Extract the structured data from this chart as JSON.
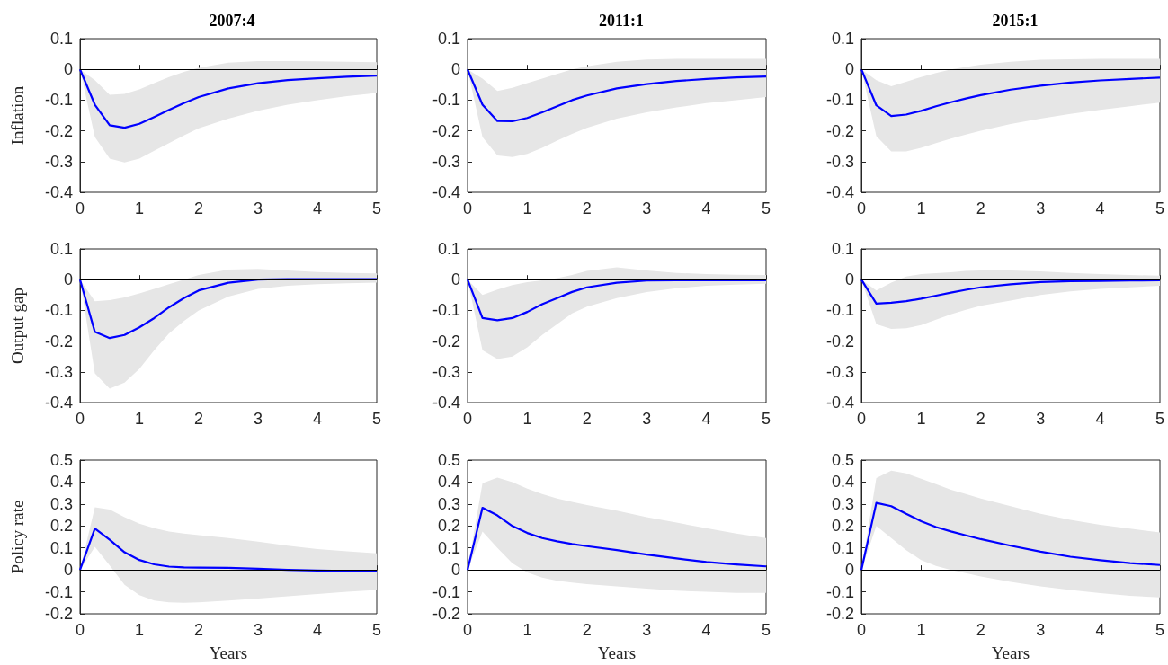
{
  "chart_data": [
    {
      "type": "line",
      "title": "2007:4",
      "ylabel": "Inflation",
      "x": [
        0,
        0.25,
        0.5,
        0.75,
        1,
        1.25,
        1.5,
        1.75,
        2,
        2.5,
        3,
        3.5,
        4,
        4.5,
        5
      ],
      "xlim": [
        0,
        5
      ],
      "xticks": [
        0,
        1,
        2,
        3,
        4,
        5
      ],
      "ylim": [
        -0.4,
        0.1
      ],
      "yticks": [
        -0.4,
        -0.3,
        -0.2,
        -0.1,
        0,
        0.1
      ],
      "ref_lines": [
        {
          "axis": "y",
          "value": 0,
          "color": "#000000"
        }
      ],
      "series": [
        {
          "color": "#0000ff",
          "values": [
            0,
            -0.115,
            -0.182,
            -0.19,
            -0.177,
            -0.155,
            -0.132,
            -0.11,
            -0.09,
            -0.062,
            -0.045,
            -0.035,
            -0.029,
            -0.024,
            -0.02
          ],
          "lower": [
            0,
            -0.22,
            -0.29,
            -0.303,
            -0.29,
            -0.265,
            -0.24,
            -0.215,
            -0.192,
            -0.16,
            -0.135,
            -0.115,
            -0.1,
            -0.087,
            -0.077
          ],
          "upper": [
            0,
            -0.035,
            -0.083,
            -0.08,
            -0.065,
            -0.045,
            -0.025,
            -0.008,
            0.005,
            0.022,
            0.027,
            0.027,
            0.026,
            0.025,
            0.023
          ]
        }
      ]
    },
    {
      "type": "line",
      "title": "2011:1",
      "x": [
        0,
        0.25,
        0.5,
        0.75,
        1,
        1.25,
        1.5,
        1.75,
        2,
        2.5,
        3,
        3.5,
        4,
        4.5,
        5
      ],
      "xlim": [
        0,
        5
      ],
      "xticks": [
        0,
        1,
        2,
        3,
        4,
        5
      ],
      "ylim": [
        -0.4,
        0.1
      ],
      "yticks": [
        -0.4,
        -0.3,
        -0.2,
        -0.1,
        0,
        0.1
      ],
      "ref_lines": [
        {
          "axis": "y",
          "value": 0,
          "color": "#000000"
        }
      ],
      "series": [
        {
          "color": "#0000ff",
          "values": [
            0,
            -0.115,
            -0.168,
            -0.169,
            -0.158,
            -0.14,
            -0.12,
            -0.1,
            -0.085,
            -0.062,
            -0.048,
            -0.038,
            -0.031,
            -0.026,
            -0.023
          ],
          "lower": [
            0,
            -0.22,
            -0.28,
            -0.285,
            -0.275,
            -0.255,
            -0.232,
            -0.21,
            -0.19,
            -0.16,
            -0.14,
            -0.124,
            -0.11,
            -0.1,
            -0.09
          ],
          "upper": [
            0,
            -0.03,
            -0.07,
            -0.06,
            -0.045,
            -0.03,
            -0.015,
            0,
            0.01,
            0.025,
            0.032,
            0.034,
            0.034,
            0.034,
            0.034
          ]
        }
      ]
    },
    {
      "type": "line",
      "title": "2015:1",
      "x": [
        0,
        0.25,
        0.5,
        0.75,
        1,
        1.25,
        1.5,
        1.75,
        2,
        2.5,
        3,
        3.5,
        4,
        4.5,
        5
      ],
      "xlim": [
        0,
        5
      ],
      "xticks": [
        0,
        1,
        2,
        3,
        4,
        5
      ],
      "ylim": [
        -0.4,
        0.1
      ],
      "yticks": [
        -0.4,
        -0.3,
        -0.2,
        -0.1,
        0,
        0.1
      ],
      "ref_lines": [
        {
          "axis": "y",
          "value": 0,
          "color": "#000000"
        }
      ],
      "series": [
        {
          "color": "#0000ff",
          "values": [
            0,
            -0.117,
            -0.152,
            -0.147,
            -0.135,
            -0.12,
            -0.107,
            -0.095,
            -0.084,
            -0.066,
            -0.053,
            -0.043,
            -0.036,
            -0.031,
            -0.027
          ],
          "lower": [
            0,
            -0.217,
            -0.267,
            -0.267,
            -0.255,
            -0.24,
            -0.225,
            -0.212,
            -0.2,
            -0.178,
            -0.16,
            -0.145,
            -0.132,
            -0.12,
            -0.108
          ],
          "upper": [
            0,
            -0.035,
            -0.055,
            -0.04,
            -0.025,
            -0.012,
            0,
            0.008,
            0.015,
            0.025,
            0.031,
            0.033,
            0.034,
            0.034,
            0.034
          ]
        }
      ]
    },
    {
      "type": "line",
      "ylabel": "Output gap",
      "x": [
        0,
        0.25,
        0.5,
        0.75,
        1,
        1.25,
        1.5,
        1.75,
        2,
        2.5,
        3,
        3.5,
        4,
        4.5,
        5
      ],
      "xlim": [
        0,
        5
      ],
      "xticks": [
        0,
        1,
        2,
        3,
        4,
        5
      ],
      "ylim": [
        -0.4,
        0.1
      ],
      "yticks": [
        -0.4,
        -0.3,
        -0.2,
        -0.1,
        0,
        0.1
      ],
      "ref_lines": [
        {
          "axis": "y",
          "value": 0,
          "color": "#000000"
        }
      ],
      "series": [
        {
          "color": "#0000ff",
          "values": [
            0,
            -0.17,
            -0.19,
            -0.18,
            -0.155,
            -0.125,
            -0.09,
            -0.06,
            -0.035,
            -0.01,
            0,
            0.002,
            0.002,
            0.002,
            0.002
          ],
          "lower": [
            0,
            -0.305,
            -0.355,
            -0.335,
            -0.29,
            -0.23,
            -0.175,
            -0.135,
            -0.1,
            -0.055,
            -0.03,
            -0.02,
            -0.015,
            -0.012,
            -0.01
          ],
          "upper": [
            0,
            -0.07,
            -0.067,
            -0.058,
            -0.045,
            -0.03,
            -0.015,
            0,
            0.015,
            0.033,
            0.035,
            0.03,
            0.025,
            0.022,
            0.02
          ]
        }
      ]
    },
    {
      "type": "line",
      "x": [
        0,
        0.25,
        0.5,
        0.75,
        1,
        1.25,
        1.5,
        1.75,
        2,
        2.5,
        3,
        3.5,
        4,
        4.5,
        5
      ],
      "xlim": [
        0,
        5
      ],
      "xticks": [
        0,
        1,
        2,
        3,
        4,
        5
      ],
      "ylim": [
        -0.4,
        0.1
      ],
      "yticks": [
        -0.4,
        -0.3,
        -0.2,
        -0.1,
        0,
        0.1
      ],
      "ref_lines": [
        {
          "axis": "y",
          "value": 0,
          "color": "#000000"
        }
      ],
      "series": [
        {
          "color": "#0000ff",
          "values": [
            0,
            -0.125,
            -0.132,
            -0.125,
            -0.105,
            -0.08,
            -0.06,
            -0.04,
            -0.025,
            -0.01,
            -0.003,
            -0.002,
            -0.002,
            -0.002,
            -0.002
          ],
          "lower": [
            0,
            -0.23,
            -0.258,
            -0.25,
            -0.22,
            -0.18,
            -0.145,
            -0.11,
            -0.088,
            -0.06,
            -0.04,
            -0.028,
            -0.02,
            -0.016,
            -0.013
          ],
          "upper": [
            0,
            -0.05,
            -0.032,
            -0.018,
            -0.008,
            -0.002,
            0.005,
            0.015,
            0.028,
            0.04,
            0.03,
            0.022,
            0.018,
            0.016,
            0.015
          ]
        }
      ]
    },
    {
      "type": "line",
      "x": [
        0,
        0.25,
        0.5,
        0.75,
        1,
        1.25,
        1.5,
        1.75,
        2,
        2.5,
        3,
        3.5,
        4,
        4.5,
        5
      ],
      "xlim": [
        0,
        5
      ],
      "xticks": [
        0,
        1,
        2,
        3,
        4,
        5
      ],
      "ylim": [
        -0.4,
        0.1
      ],
      "yticks": [
        -0.4,
        -0.3,
        -0.2,
        -0.1,
        0,
        0.1
      ],
      "ref_lines": [
        {
          "axis": "y",
          "value": 0,
          "color": "#000000"
        }
      ],
      "series": [
        {
          "color": "#0000ff",
          "values": [
            0,
            -0.078,
            -0.075,
            -0.07,
            -0.062,
            -0.052,
            -0.042,
            -0.033,
            -0.025,
            -0.015,
            -0.008,
            -0.005,
            -0.004,
            -0.003,
            -0.002
          ],
          "lower": [
            0,
            -0.145,
            -0.16,
            -0.158,
            -0.148,
            -0.13,
            -0.113,
            -0.098,
            -0.085,
            -0.068,
            -0.05,
            -0.038,
            -0.03,
            -0.025,
            -0.02
          ],
          "upper": [
            0,
            -0.035,
            -0.01,
            0.01,
            0.018,
            0.021,
            0.024,
            0.028,
            0.03,
            0.03,
            0.027,
            0.022,
            0.018,
            0.015,
            0.013
          ]
        }
      ]
    },
    {
      "type": "line",
      "ylabel": "Policy rate",
      "xlabel": "Years",
      "x": [
        0,
        0.25,
        0.5,
        0.75,
        1,
        1.25,
        1.5,
        1.75,
        2,
        2.5,
        3,
        3.5,
        4,
        4.5,
        5
      ],
      "xlim": [
        0,
        5
      ],
      "xticks": [
        0,
        1,
        2,
        3,
        4,
        5
      ],
      "ylim": [
        -0.2,
        0.5
      ],
      "yticks": [
        -0.2,
        -0.1,
        0,
        0.1,
        0.2,
        0.3,
        0.4,
        0.5
      ],
      "ref_lines": [
        {
          "axis": "y",
          "value": 0,
          "color": "#000000"
        }
      ],
      "series": [
        {
          "color": "#0000ff",
          "values": [
            0,
            0.188,
            0.137,
            0.08,
            0.045,
            0.025,
            0.015,
            0.011,
            0.01,
            0.009,
            0.005,
            0,
            -0.003,
            -0.005,
            -0.006
          ],
          "lower": [
            0,
            0.105,
            0.02,
            -0.068,
            -0.115,
            -0.14,
            -0.148,
            -0.15,
            -0.148,
            -0.14,
            -0.13,
            -0.12,
            -0.11,
            -0.1,
            -0.092
          ],
          "upper": [
            0,
            0.285,
            0.275,
            0.24,
            0.21,
            0.19,
            0.175,
            0.165,
            0.158,
            0.145,
            0.128,
            0.11,
            0.095,
            0.085,
            0.075
          ]
        }
      ]
    },
    {
      "type": "line",
      "xlabel": "Years",
      "x": [
        0,
        0.25,
        0.5,
        0.75,
        1,
        1.25,
        1.5,
        1.75,
        2,
        2.5,
        3,
        3.5,
        4,
        4.5,
        5
      ],
      "xlim": [
        0,
        5
      ],
      "xticks": [
        0,
        1,
        2,
        3,
        4,
        5
      ],
      "ylim": [
        -0.2,
        0.5
      ],
      "yticks": [
        -0.2,
        -0.1,
        0,
        0.1,
        0.2,
        0.3,
        0.4,
        0.5
      ],
      "ref_lines": [
        {
          "axis": "y",
          "value": 0,
          "color": "#000000"
        }
      ],
      "series": [
        {
          "color": "#0000ff",
          "values": [
            0,
            0.283,
            0.248,
            0.2,
            0.168,
            0.145,
            0.13,
            0.118,
            0.108,
            0.09,
            0.07,
            0.052,
            0.036,
            0.025,
            0.016
          ],
          "lower": [
            0,
            0.175,
            0.1,
            0.03,
            -0.012,
            -0.035,
            -0.05,
            -0.058,
            -0.065,
            -0.075,
            -0.085,
            -0.095,
            -0.1,
            -0.105,
            -0.105
          ],
          "upper": [
            0,
            0.395,
            0.42,
            0.4,
            0.37,
            0.345,
            0.325,
            0.31,
            0.295,
            0.27,
            0.24,
            0.215,
            0.19,
            0.165,
            0.145
          ]
        }
      ]
    },
    {
      "type": "line",
      "xlabel": "Years",
      "x": [
        0,
        0.25,
        0.5,
        0.75,
        1,
        1.25,
        1.5,
        1.75,
        2,
        2.5,
        3,
        3.5,
        4,
        4.5,
        5
      ],
      "xlim": [
        0,
        5
      ],
      "xticks": [
        0,
        1,
        2,
        3,
        4,
        5
      ],
      "ylim": [
        -0.2,
        0.5
      ],
      "yticks": [
        -0.2,
        -0.1,
        0,
        0.1,
        0.2,
        0.3,
        0.4,
        0.5
      ],
      "ref_lines": [
        {
          "axis": "y",
          "value": 0,
          "color": "#000000"
        }
      ],
      "series": [
        {
          "color": "#0000ff",
          "values": [
            0,
            0.305,
            0.29,
            0.255,
            0.222,
            0.195,
            0.175,
            0.157,
            0.14,
            0.11,
            0.083,
            0.06,
            0.044,
            0.031,
            0.022
          ],
          "lower": [
            0,
            0.2,
            0.145,
            0.09,
            0.045,
            0.018,
            0,
            -0.015,
            -0.03,
            -0.055,
            -0.075,
            -0.092,
            -0.106,
            -0.118,
            -0.125
          ],
          "upper": [
            0,
            0.418,
            0.452,
            0.44,
            0.415,
            0.39,
            0.365,
            0.345,
            0.325,
            0.29,
            0.255,
            0.228,
            0.205,
            0.188,
            0.17
          ]
        }
      ]
    }
  ]
}
